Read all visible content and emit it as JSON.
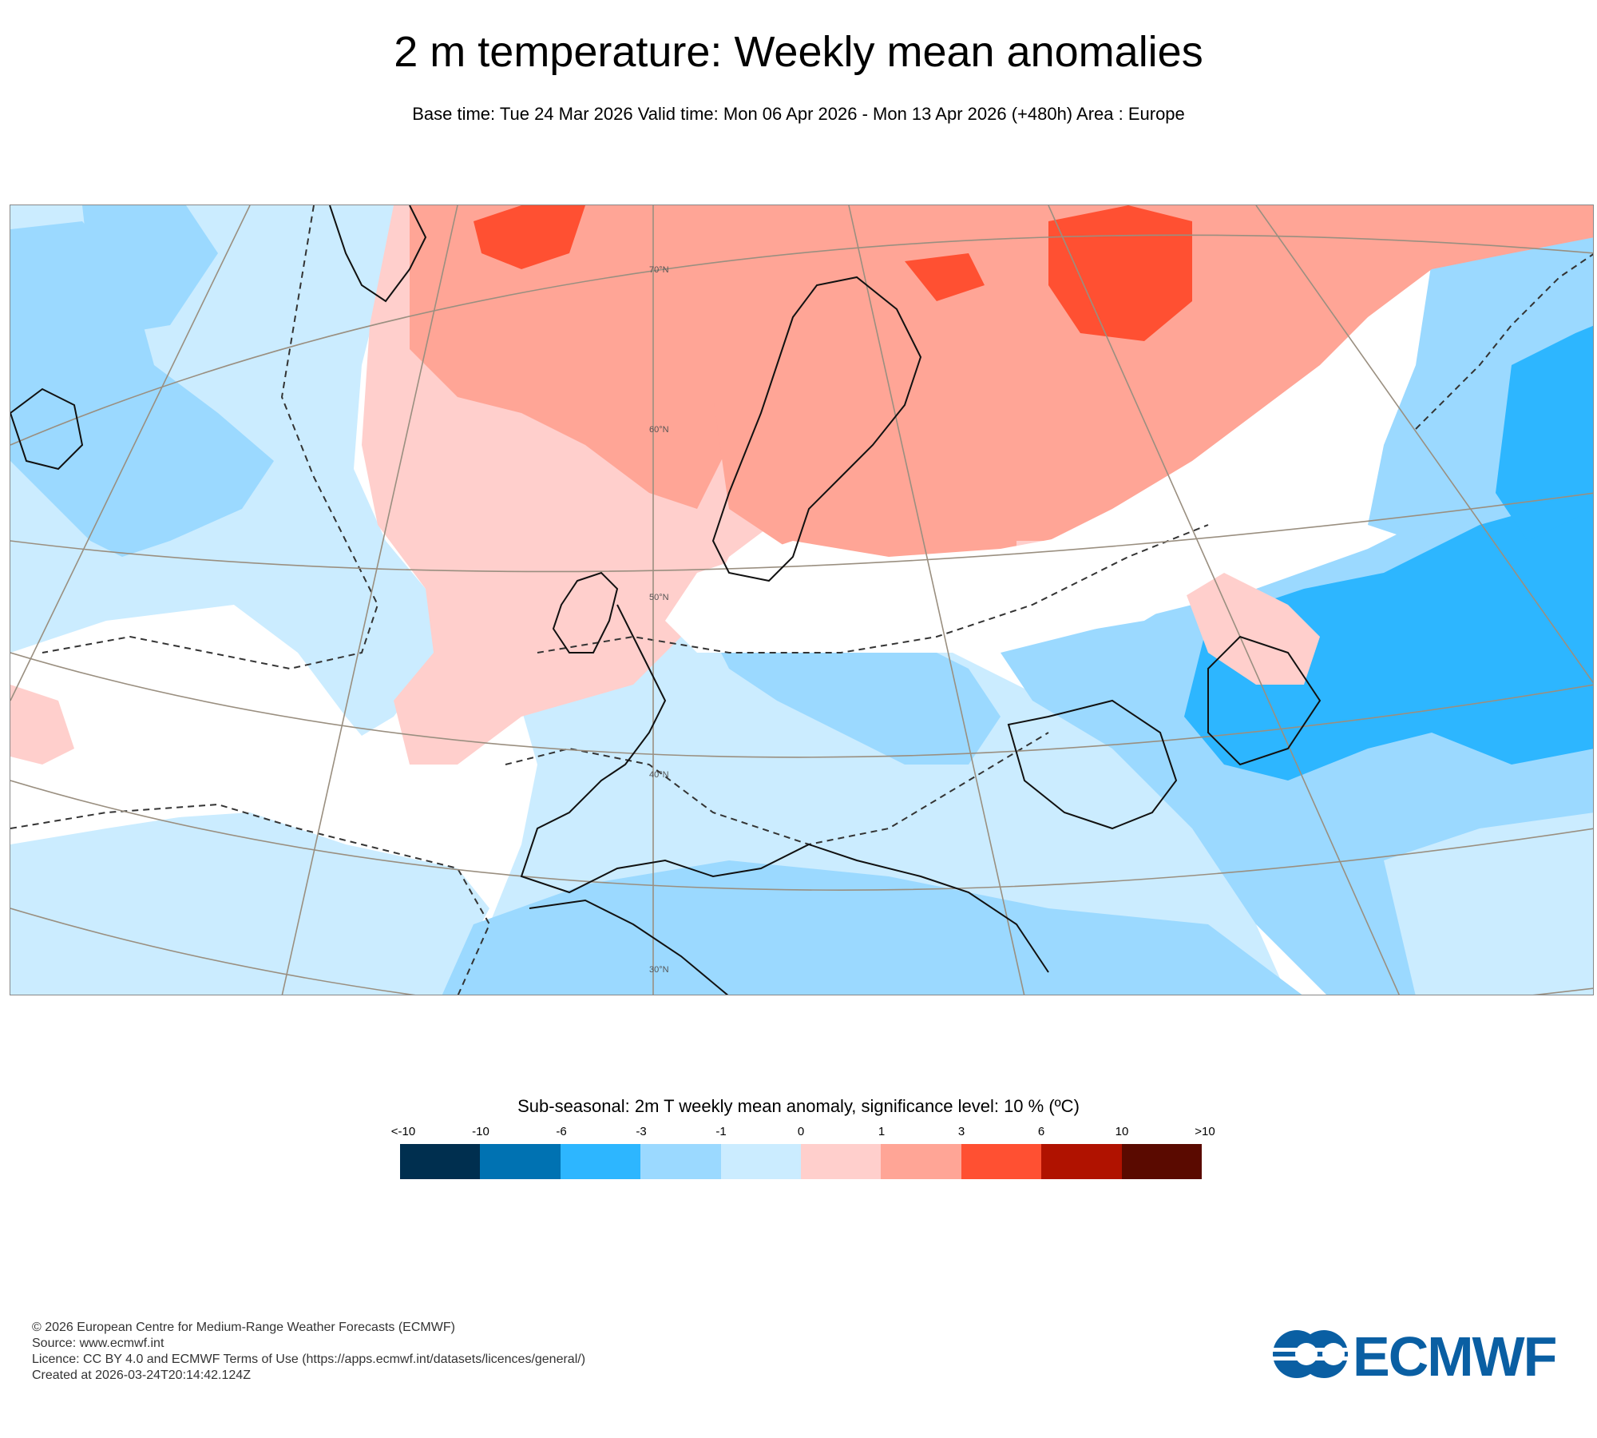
{
  "header": {
    "title": "2 m temperature: Weekly mean anomalies",
    "subtitle": "Base time: Tue 24 Mar 2026 Valid time: Mon 06 Apr 2026 - Mon 13 Apr 2026 (+480h) Area : Europe"
  },
  "map": {
    "region": "Europe",
    "latitude_labels": [
      "70°N",
      "60°N",
      "50°N",
      "40°N",
      "30°N"
    ]
  },
  "legend": {
    "title": "Sub-seasonal: 2m T weekly mean anomaly, significance level: 10 % (ºC)",
    "tick_labels": [
      "<-10",
      "-10",
      "-6",
      "-3",
      "-1",
      "0",
      "1",
      "3",
      "6",
      "10",
      ">10"
    ],
    "colors": [
      "#002f4f",
      "#0072b2",
      "#2db6ff",
      "#9bd9ff",
      "#cbecff",
      "#ffcfcc",
      "#ffa596",
      "#ff5032",
      "#b01200",
      "#5a0a00"
    ]
  },
  "footer": {
    "copyright": "© 2026 European Centre for Medium-Range Weather Forecasts (ECMWF)",
    "source": "Source: www.ecmwf.int",
    "licence": "Licence: CC BY 4.0 and ECMWF Terms of Use (https://apps.ecmwf.int/datasets/licences/general/)",
    "created": "Created at 2026-03-24T20:14:42.124Z"
  },
  "logo": {
    "text": "ECMWF",
    "color": "#0a5fa3"
  }
}
